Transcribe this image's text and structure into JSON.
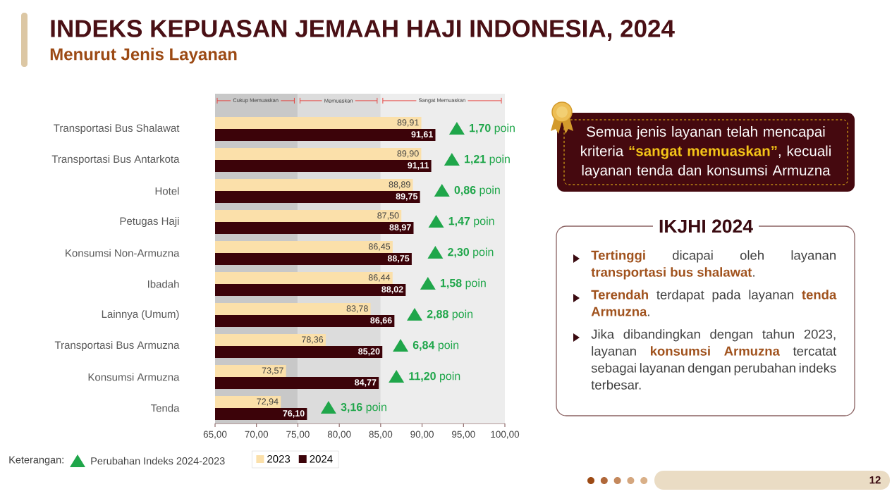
{
  "chart_data": {
    "type": "bar",
    "orientation": "horizontal",
    "title": "INDEKS KEPUASAN JEMAAH HAJI INDONESIA, 2024",
    "subtitle": "Menurut Jenis Layanan",
    "categories": [
      "Transportasi Bus Shalawat",
      "Transportasi Bus Antarkota",
      "Hotel",
      "Petugas Haji",
      "Konsumsi Non-Armuzna",
      "Ibadah",
      "Lainnya (Umum)",
      "Transportasi Bus Armuzna",
      "Konsumsi Armuzna",
      "Tenda"
    ],
    "series": [
      {
        "name": "2023",
        "color": "#fbe0aa",
        "values": [
          89.91,
          89.9,
          88.89,
          87.5,
          86.45,
          86.44,
          83.78,
          78.36,
          73.57,
          72.94
        ],
        "value_labels": [
          "89,91",
          "89,90",
          "88,89",
          "87,50",
          "86,45",
          "86,44",
          "83,78",
          "78,36",
          "73,57",
          "72,94"
        ]
      },
      {
        "name": "2024",
        "color": "#3c0309",
        "values": [
          91.61,
          91.11,
          89.75,
          88.97,
          88.75,
          88.02,
          86.66,
          85.2,
          84.77,
          76.1
        ],
        "value_labels": [
          "91,61",
          "91,11",
          "89,75",
          "88,97",
          "88,75",
          "88,02",
          "86,66",
          "85,20",
          "84,77",
          "76,10"
        ]
      }
    ],
    "xlim": [
      65,
      100
    ],
    "xticks": [
      {
        "value": 65,
        "label": "65,00"
      },
      {
        "value": 70,
        "label": "70,00"
      },
      {
        "value": 75,
        "label": "75,00"
      },
      {
        "value": 80,
        "label": "80,00"
      },
      {
        "value": 85,
        "label": "85,00"
      },
      {
        "value": 90,
        "label": "90,00"
      },
      {
        "value": 95,
        "label": "95,00"
      },
      {
        "value": 100,
        "label": "100,00"
      }
    ],
    "bands": [
      {
        "axis": "x",
        "from": 65,
        "to": 75,
        "label": "Cukup Memuaskan",
        "color": "#c8c8c8"
      },
      {
        "axis": "x",
        "from": 75,
        "to": 85,
        "label": "Memuaskan",
        "color": "#dcdcdc"
      },
      {
        "axis": "x",
        "from": 85,
        "to": 100,
        "label": "Sangat Memuaskan",
        "color": "#ededed"
      }
    ],
    "legend": "bottom",
    "annotations": [
      {
        "text": "**1,70** poin",
        "x": 94.2,
        "y": "Transportasi Bus Shalawat"
      },
      {
        "text": "**1,21** poin",
        "x": 93.6,
        "y": "Transportasi Bus Antarkota"
      },
      {
        "text": "**0,86** poin",
        "x": 92.4,
        "y": "Hotel"
      },
      {
        "text": "**1,47** poin",
        "x": 91.7,
        "y": "Petugas Haji"
      },
      {
        "text": "**2,30** poin",
        "x": 91.6,
        "y": "Konsumsi Non-Armuzna"
      },
      {
        "text": "**1,58** poin",
        "x": 90.7,
        "y": "Ibadah"
      },
      {
        "text": "**2,88** poin",
        "x": 89.1,
        "y": "Lainnya (Umum)"
      },
      {
        "text": "**6,84** poin",
        "x": 87.4,
        "y": "Transportasi Bus Armuzna"
      },
      {
        "text": "**11,20** poin",
        "x": 86.9,
        "y": "Konsumsi Armuzna"
      },
      {
        "text": "**3,16** poin",
        "x": 78.7,
        "y": "Tenda"
      },
      "Semua jenis layanan telah mencapai kriteria **“sangat memuaskan”**, kecuali layanan tenda dan konsumsi Armuzna",
      "IKJHI 2024",
      "**Tertinggi** dicapai oleh layanan **transportasi bus shalawat**.",
      "**Terendah** terdapat pada layanan **tenda Armuzna**.",
      "Jika dibandingkan dengan tahun 2023, layanan **konsumsi Armuzna** tercatat sebagai layanan dengan perubahan indeks terbesar.",
      "Keterangan:",
      "Perubahan Indeks 2024-2023",
      "12"
    ]
  }
}
